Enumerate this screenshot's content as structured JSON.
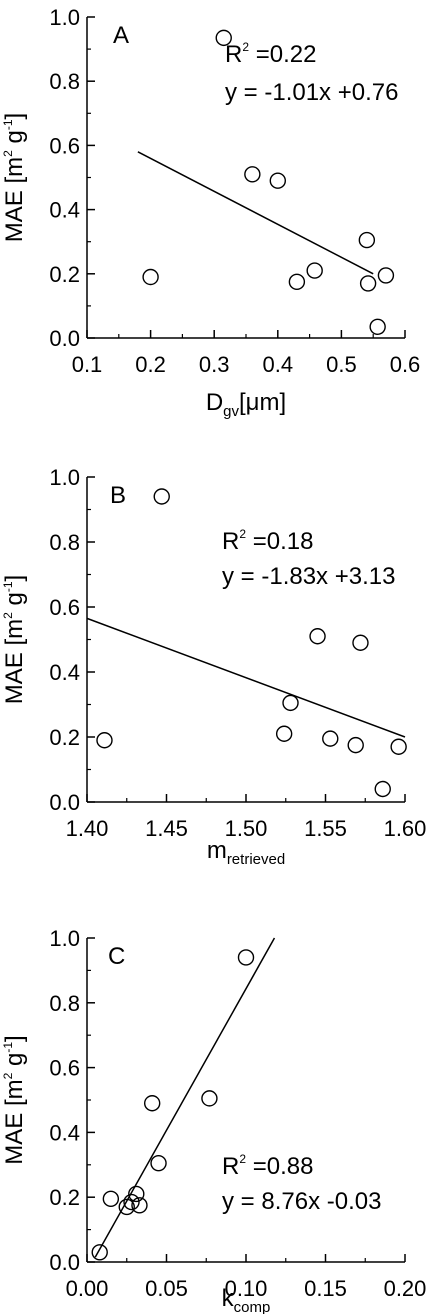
{
  "chart_data": [
    {
      "type": "scatter",
      "panel_label": "A",
      "ylabel": {
        "main": "MAE [m",
        "sup1": "2",
        "mid": " g",
        "sup2": "-1",
        "end": "]"
      },
      "xlabel": {
        "main": "D",
        "sub": "gv",
        "rest": "[μm]"
      },
      "xlim": [
        0.1,
        0.6
      ],
      "ylim": [
        0.0,
        1.0
      ],
      "xticks": [
        "0.1",
        "0.2",
        "0.3",
        "0.4",
        "0.5",
        "0.6"
      ],
      "yticks": [
        "0.0",
        "0.2",
        "0.4",
        "0.6",
        "0.8",
        "1.0"
      ],
      "x": [
        0.2,
        0.315,
        0.36,
        0.4,
        0.43,
        0.458,
        0.54,
        0.542,
        0.557,
        0.57
      ],
      "y": [
        0.19,
        0.935,
        0.51,
        0.49,
        0.175,
        0.21,
        0.305,
        0.17,
        0.035,
        0.195
      ],
      "fit_line": {
        "x": [
          0.18,
          0.55
        ],
        "y": [
          0.58,
          0.2
        ]
      },
      "annotations": {
        "r2_label": "R",
        "r2_sup": "2",
        "r2_value": " =0.22",
        "equation": "y =  -1.01x +0.76"
      }
    },
    {
      "type": "scatter",
      "panel_label": "B",
      "ylabel": {
        "main": "MAE [m",
        "sup1": "2",
        "mid": " g",
        "sup2": "-1",
        "end": "]"
      },
      "xlabel": {
        "main": "m",
        "sub": "retrieved",
        "rest": ""
      },
      "xlim": [
        1.4,
        1.6
      ],
      "ylim": [
        0.0,
        1.0
      ],
      "xticks": [
        "1.40",
        "1.45",
        "1.50",
        "1.55",
        "1.60"
      ],
      "yticks": [
        "0.0",
        "0.2",
        "0.4",
        "0.6",
        "0.8",
        "1.0"
      ],
      "x": [
        1.411,
        1.447,
        1.524,
        1.528,
        1.545,
        1.553,
        1.569,
        1.572,
        1.586,
        1.596
      ],
      "y": [
        0.19,
        0.94,
        0.21,
        0.305,
        0.51,
        0.195,
        0.175,
        0.49,
        0.04,
        0.17
      ],
      "fit_line": {
        "x": [
          1.4,
          1.6
        ],
        "y": [
          0.565,
          0.2
        ]
      },
      "annotations": {
        "r2_label": "R",
        "r2_sup": "2",
        "r2_value": " =0.18",
        "equation": "y =  -1.83x +3.13"
      }
    },
    {
      "type": "scatter",
      "panel_label": "C",
      "ylabel": {
        "main": "MAE [m",
        "sup1": "2",
        "mid": " g",
        "sup2": "-1",
        "end": "]"
      },
      "xlabel": {
        "main": "k",
        "sub": "comp",
        "rest": ""
      },
      "xlim": [
        0.0,
        0.2
      ],
      "ylim": [
        0.0,
        1.0
      ],
      "xticks": [
        "0.00",
        "0.05",
        "0.10",
        "0.15",
        "0.20"
      ],
      "yticks": [
        "0.0",
        "0.2",
        "0.4",
        "0.6",
        "0.8",
        "1.0"
      ],
      "x": [
        0.008,
        0.015,
        0.025,
        0.028,
        0.031,
        0.033,
        0.041,
        0.045,
        0.077,
        0.1
      ],
      "y": [
        0.03,
        0.195,
        0.17,
        0.185,
        0.21,
        0.175,
        0.49,
        0.305,
        0.505,
        0.94
      ],
      "fit_line": {
        "x": [
          0.0052,
          0.1179
        ],
        "y": [
          0.015,
          1.0
        ]
      },
      "annotations": {
        "r2_label": "R",
        "r2_sup": "2",
        "r2_value": " =0.88",
        "equation": "y =   8.76x -0.03"
      }
    }
  ]
}
